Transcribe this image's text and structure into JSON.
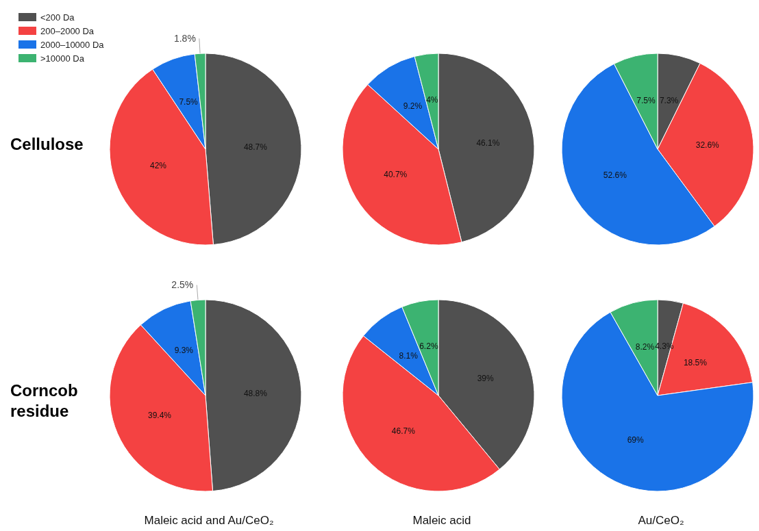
{
  "chart_data": [
    {
      "type": "pie",
      "ylabel": "Cellulose",
      "legend": "top left",
      "categories": [
        "<200 Da",
        "200–2000 Da",
        "2000–10000 Da",
        ">10000 Da"
      ],
      "values": [
        48.7,
        42,
        7.5,
        1.8
      ],
      "value_labels": [
        "48.7%",
        "42%",
        "7.5%",
        "1.8%"
      ],
      "colors": [
        "#505050",
        "#f44242",
        "#1a73e8",
        "#3cb371"
      ]
    },
    {
      "type": "pie",
      "values": [
        46.1,
        40.7,
        9.2,
        4
      ],
      "value_labels": [
        "46.1%",
        "40.7%",
        "9.2%",
        "4%"
      ],
      "colors": [
        "#505050",
        "#f44242",
        "#1a73e8",
        "#3cb371"
      ]
    },
    {
      "type": "pie",
      "values": [
        7.3,
        32.6,
        52.6,
        7.5
      ],
      "value_labels": [
        "7.3%",
        "32.6%",
        "52.6%",
        "7.5%"
      ],
      "colors": [
        "#505050",
        "#f44242",
        "#1a73e8",
        "#3cb371"
      ]
    },
    {
      "type": "pie",
      "ylabel": "Corncob residue",
      "xlabel": "Maleic acid and Au/CeO₂",
      "values": [
        48.8,
        39.4,
        9.3,
        2.5
      ],
      "value_labels": [
        "48.8%",
        "39.4%",
        "9.3%",
        "2.5%"
      ],
      "colors": [
        "#505050",
        "#f44242",
        "#1a73e8",
        "#3cb371"
      ]
    },
    {
      "type": "pie",
      "xlabel": "Maleic acid",
      "values": [
        39,
        46.7,
        8.1,
        6.2
      ],
      "value_labels": [
        "39%",
        "46.7%",
        "8.1%",
        "6.2%"
      ],
      "colors": [
        "#505050",
        "#f44242",
        "#1a73e8",
        "#3cb371"
      ]
    },
    {
      "type": "pie",
      "xlabel": "Au/CeO₂",
      "values": [
        4.3,
        18.5,
        69,
        8.2
      ],
      "value_labels": [
        "4.3%",
        "18.5%",
        "69%",
        "8.2%"
      ],
      "colors": [
        "#505050",
        "#f44242",
        "#1a73e8",
        "#3cb371"
      ]
    }
  ]
}
